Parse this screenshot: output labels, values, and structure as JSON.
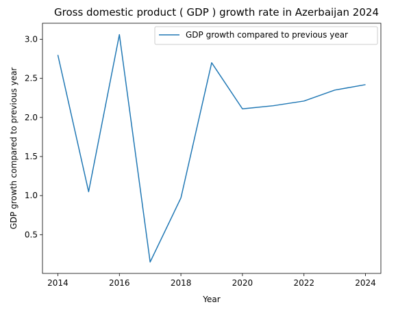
{
  "chart_data": {
    "type": "line",
    "title": "Gross domestic product ( GDP ) growth rate in Azerbaijan 2024",
    "xlabel": "Year",
    "ylabel": "GDP growth compared to previous year",
    "x": [
      2014,
      2015,
      2016,
      2017,
      2018,
      2019,
      2020,
      2021,
      2022,
      2023,
      2024
    ],
    "series": [
      {
        "name": "GDP growth compared to previous year",
        "values": [
          2.8,
          1.05,
          3.06,
          0.15,
          0.97,
          2.7,
          2.11,
          2.15,
          2.21,
          2.35,
          2.42
        ],
        "color": "#1f77b4"
      }
    ],
    "xlim": [
      2013.5,
      2024.5
    ],
    "ylim": [
      0.0045,
      3.2055
    ],
    "xticks": [
      2014,
      2016,
      2018,
      2020,
      2022,
      2024
    ],
    "xtick_labels": [
      "2014",
      "2016",
      "2018",
      "2020",
      "2022",
      "2024"
    ],
    "yticks": [
      0.5,
      1.0,
      1.5,
      2.0,
      2.5,
      3.0
    ],
    "ytick_labels": [
      "0.5",
      "1.0",
      "1.5",
      "2.0",
      "2.5",
      "3.0"
    ],
    "grid": false,
    "legend_position": "top-right"
  }
}
